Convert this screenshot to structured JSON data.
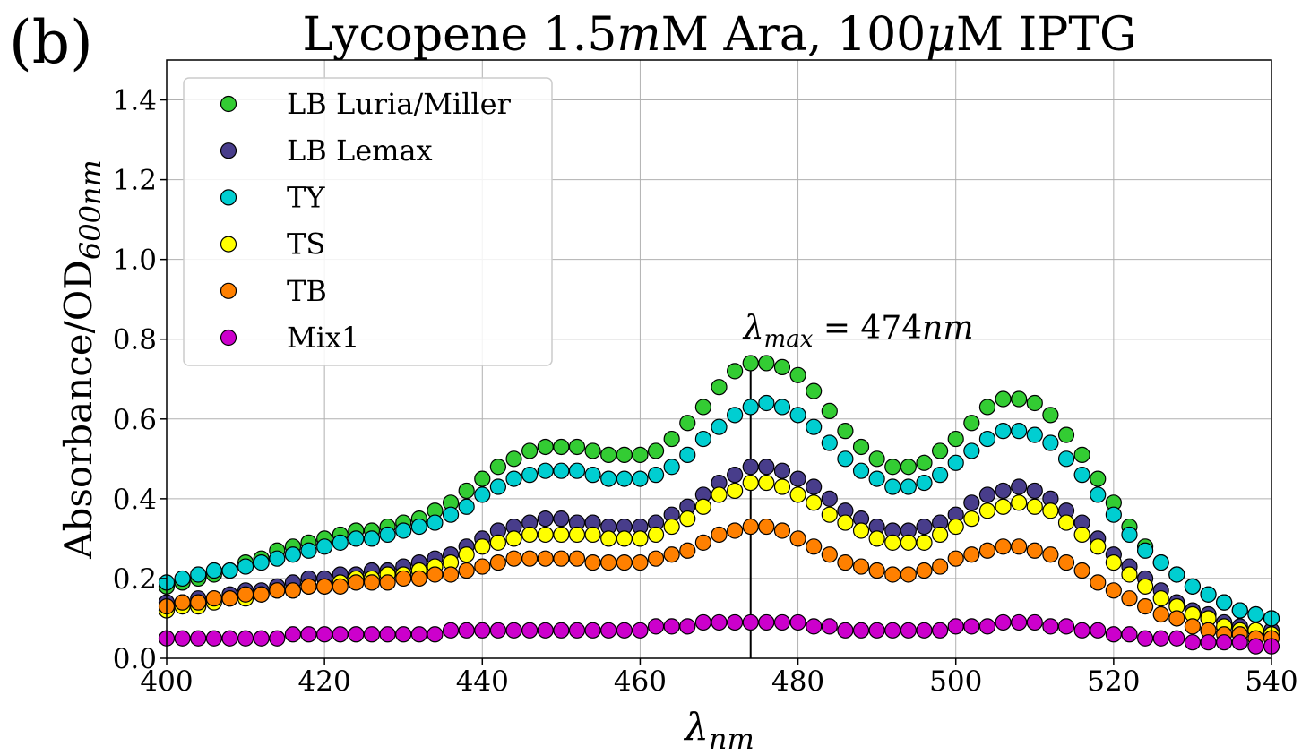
{
  "chart_data": {
    "type": "scatter",
    "panel_label": "(b)",
    "title_parts": [
      "Lycopene  1.5",
      "m",
      "M Ara, 100",
      "μ",
      "M IPTG"
    ],
    "xlabel": {
      "main": "λ",
      "sub": "nm"
    },
    "ylabel": {
      "main": "Absorbance/OD",
      "sub": "600nm"
    },
    "xlim": [
      400,
      540
    ],
    "ylim": [
      0,
      1.5
    ],
    "xticks": [
      400,
      420,
      440,
      460,
      480,
      500,
      520,
      540
    ],
    "yticks": [
      0.0,
      0.2,
      0.4,
      0.6,
      0.8,
      1.0,
      1.2,
      1.4
    ],
    "xtick_labels": [
      "400",
      "420",
      "440",
      "460",
      "480",
      "500",
      "520",
      "540"
    ],
    "ytick_labels": [
      "0.0",
      "0.2",
      "0.4",
      "0.6",
      "0.8",
      "1.0",
      "1.2",
      "1.4"
    ],
    "grid": true,
    "legend_position": "top-left",
    "annotation": {
      "x": 474,
      "main": "λ",
      "sub": "max",
      "rest": " = 474",
      "unit": "nm"
    },
    "x": [
      400,
      402,
      404,
      406,
      408,
      410,
      412,
      414,
      416,
      418,
      420,
      422,
      424,
      426,
      428,
      430,
      432,
      434,
      436,
      438,
      440,
      442,
      444,
      446,
      448,
      450,
      452,
      454,
      456,
      458,
      460,
      462,
      464,
      466,
      468,
      470,
      472,
      474,
      476,
      478,
      480,
      482,
      484,
      486,
      488,
      490,
      492,
      494,
      496,
      498,
      500,
      502,
      504,
      506,
      508,
      510,
      512,
      514,
      516,
      518,
      520,
      522,
      524,
      526,
      528,
      530,
      532,
      534,
      536,
      538,
      540
    ],
    "series": [
      {
        "name": "LB Luria/Miller",
        "color": "#33cc33",
        "values": [
          0.18,
          0.19,
          0.2,
          0.21,
          0.22,
          0.24,
          0.25,
          0.27,
          0.28,
          0.29,
          0.3,
          0.31,
          0.32,
          0.32,
          0.33,
          0.34,
          0.35,
          0.37,
          0.39,
          0.42,
          0.45,
          0.48,
          0.5,
          0.52,
          0.53,
          0.53,
          0.53,
          0.52,
          0.51,
          0.51,
          0.51,
          0.52,
          0.55,
          0.59,
          0.63,
          0.68,
          0.72,
          0.74,
          0.74,
          0.73,
          0.71,
          0.67,
          0.62,
          0.57,
          0.53,
          0.5,
          0.48,
          0.48,
          0.49,
          0.52,
          0.55,
          0.59,
          0.63,
          0.65,
          0.65,
          0.64,
          0.61,
          0.56,
          0.51,
          0.45,
          0.39,
          0.33,
          0.28,
          0.24,
          0.21,
          0.18,
          0.16,
          0.14,
          0.12,
          0.11,
          0.1
        ]
      },
      {
        "name": "LB Lemax",
        "color": "#483d8b",
        "values": [
          0.14,
          0.14,
          0.15,
          0.15,
          0.16,
          0.17,
          0.17,
          0.18,
          0.19,
          0.2,
          0.2,
          0.21,
          0.21,
          0.22,
          0.22,
          0.23,
          0.24,
          0.25,
          0.26,
          0.28,
          0.3,
          0.32,
          0.33,
          0.34,
          0.35,
          0.35,
          0.34,
          0.34,
          0.33,
          0.33,
          0.33,
          0.34,
          0.36,
          0.38,
          0.41,
          0.44,
          0.46,
          0.48,
          0.48,
          0.47,
          0.45,
          0.43,
          0.4,
          0.37,
          0.35,
          0.33,
          0.32,
          0.32,
          0.33,
          0.34,
          0.36,
          0.39,
          0.41,
          0.42,
          0.43,
          0.42,
          0.4,
          0.37,
          0.34,
          0.3,
          0.26,
          0.23,
          0.2,
          0.17,
          0.14,
          0.12,
          0.11,
          0.09,
          0.08,
          0.07,
          0.07
        ]
      },
      {
        "name": "TY",
        "color": "#00ced1",
        "values": [
          0.19,
          0.2,
          0.21,
          0.22,
          0.22,
          0.23,
          0.24,
          0.25,
          0.26,
          0.27,
          0.28,
          0.29,
          0.3,
          0.3,
          0.31,
          0.32,
          0.33,
          0.34,
          0.36,
          0.38,
          0.41,
          0.43,
          0.45,
          0.46,
          0.47,
          0.47,
          0.47,
          0.46,
          0.45,
          0.45,
          0.45,
          0.46,
          0.48,
          0.51,
          0.55,
          0.58,
          0.61,
          0.63,
          0.64,
          0.63,
          0.61,
          0.58,
          0.54,
          0.5,
          0.47,
          0.45,
          0.43,
          0.43,
          0.44,
          0.46,
          0.49,
          0.52,
          0.55,
          0.57,
          0.57,
          0.56,
          0.54,
          0.5,
          0.46,
          0.41,
          0.36,
          0.31,
          0.27,
          0.24,
          0.21,
          0.18,
          0.16,
          0.14,
          0.12,
          0.11,
          0.1
        ]
      },
      {
        "name": "TS",
        "color": "#ffff00",
        "values": [
          0.12,
          0.13,
          0.13,
          0.14,
          0.15,
          0.15,
          0.16,
          0.17,
          0.17,
          0.18,
          0.18,
          0.19,
          0.2,
          0.2,
          0.21,
          0.21,
          0.22,
          0.23,
          0.24,
          0.26,
          0.28,
          0.29,
          0.3,
          0.31,
          0.31,
          0.31,
          0.31,
          0.31,
          0.3,
          0.3,
          0.3,
          0.31,
          0.33,
          0.35,
          0.38,
          0.41,
          0.42,
          0.44,
          0.44,
          0.43,
          0.41,
          0.39,
          0.36,
          0.34,
          0.32,
          0.3,
          0.29,
          0.29,
          0.29,
          0.31,
          0.33,
          0.35,
          0.37,
          0.38,
          0.39,
          0.38,
          0.37,
          0.34,
          0.31,
          0.28,
          0.24,
          0.21,
          0.18,
          0.15,
          0.13,
          0.11,
          0.1,
          0.08,
          0.07,
          0.07,
          0.06
        ]
      },
      {
        "name": "TB",
        "color": "#ff8000",
        "values": [
          0.13,
          0.14,
          0.14,
          0.15,
          0.15,
          0.16,
          0.16,
          0.17,
          0.17,
          0.18,
          0.18,
          0.18,
          0.19,
          0.19,
          0.19,
          0.2,
          0.2,
          0.21,
          0.21,
          0.22,
          0.23,
          0.24,
          0.25,
          0.25,
          0.25,
          0.25,
          0.25,
          0.24,
          0.24,
          0.24,
          0.24,
          0.25,
          0.26,
          0.27,
          0.29,
          0.31,
          0.32,
          0.33,
          0.33,
          0.32,
          0.3,
          0.28,
          0.26,
          0.24,
          0.23,
          0.22,
          0.21,
          0.21,
          0.22,
          0.23,
          0.25,
          0.26,
          0.27,
          0.28,
          0.28,
          0.27,
          0.26,
          0.24,
          0.22,
          0.19,
          0.17,
          0.15,
          0.13,
          0.11,
          0.1,
          0.08,
          0.07,
          0.06,
          0.06,
          0.05,
          0.05
        ]
      },
      {
        "name": "Mix1",
        "color": "#cc00cc",
        "values": [
          0.05,
          0.05,
          0.05,
          0.05,
          0.05,
          0.05,
          0.05,
          0.05,
          0.06,
          0.06,
          0.06,
          0.06,
          0.06,
          0.06,
          0.06,
          0.06,
          0.06,
          0.06,
          0.07,
          0.07,
          0.07,
          0.07,
          0.07,
          0.07,
          0.07,
          0.07,
          0.07,
          0.07,
          0.07,
          0.07,
          0.07,
          0.08,
          0.08,
          0.08,
          0.09,
          0.09,
          0.09,
          0.09,
          0.09,
          0.09,
          0.09,
          0.08,
          0.08,
          0.07,
          0.07,
          0.07,
          0.07,
          0.07,
          0.07,
          0.07,
          0.08,
          0.08,
          0.08,
          0.09,
          0.09,
          0.09,
          0.08,
          0.08,
          0.07,
          0.07,
          0.06,
          0.06,
          0.05,
          0.05,
          0.05,
          0.04,
          0.04,
          0.04,
          0.04,
          0.03,
          0.03
        ]
      }
    ]
  }
}
